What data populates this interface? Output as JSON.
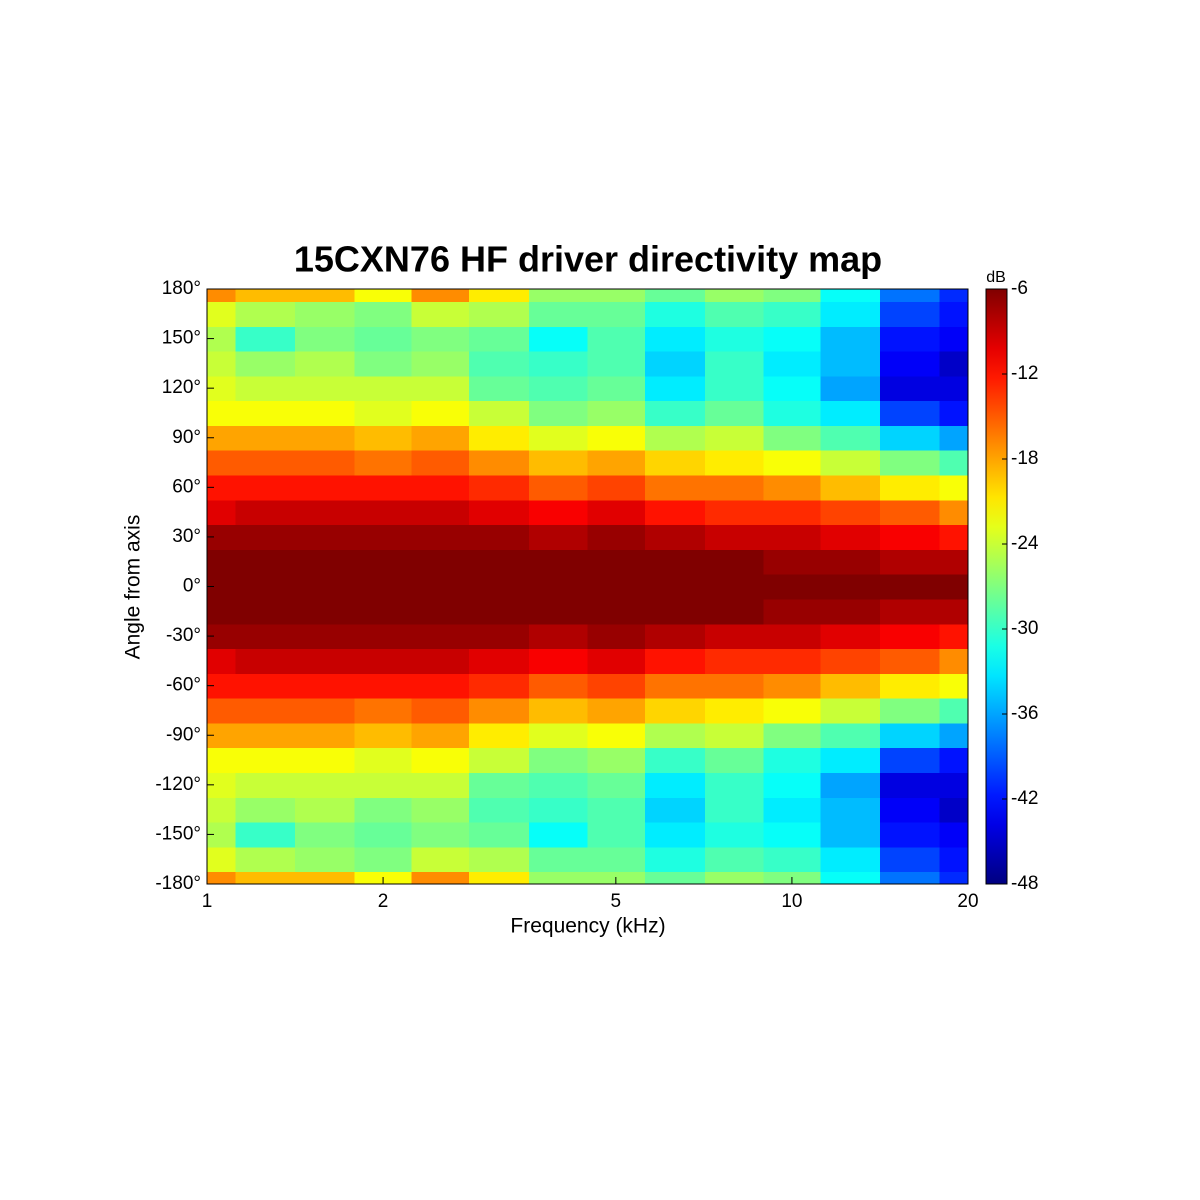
{
  "chart_data": {
    "type": "contourf",
    "title": "15CXN76 HF driver directivity map",
    "x_label": "Frequency (kHz)",
    "y_label": "Angle from axis",
    "colorbar_label": "dB",
    "x_scale": "log",
    "colormap": "jet",
    "x": [
      1,
      1.25,
      1.6,
      2,
      2.5,
      3.15,
      4,
      5,
      6.3,
      8,
      10,
      12.5,
      16,
      20
    ],
    "y": [
      -180,
      -165,
      -150,
      -135,
      -120,
      -105,
      -90,
      -75,
      -60,
      -45,
      -30,
      -15,
      0,
      15,
      30,
      45,
      60,
      75,
      90,
      105,
      120,
      135,
      150,
      165,
      180
    ],
    "z": [
      [
        -17,
        -19,
        -19,
        -22,
        -17,
        -21,
        -26,
        -26,
        -28,
        -26,
        -27,
        -32,
        -38,
        -41
      ],
      [
        -23,
        -25,
        -26,
        -27,
        -24,
        -25,
        -28,
        -28,
        -31,
        -29,
        -30,
        -33,
        -40,
        -42
      ],
      [
        -25,
        -30,
        -27,
        -28,
        -27,
        -28,
        -32,
        -29,
        -33,
        -31,
        -32,
        -35,
        -42,
        -43
      ],
      [
        -24,
        -26,
        -25,
        -27,
        -26,
        -29,
        -30,
        -29,
        -34,
        -30,
        -33,
        -35,
        -43,
        -45
      ],
      [
        -23,
        -24,
        -24,
        -24,
        -24,
        -28,
        -29,
        -28,
        -33,
        -30,
        -32,
        -36,
        -44,
        -44
      ],
      [
        -22,
        -22,
        -22,
        -23,
        -22,
        -24,
        -27,
        -26,
        -30,
        -28,
        -31,
        -33,
        -40,
        -42
      ],
      [
        -18,
        -18,
        -18,
        -19,
        -18,
        -21,
        -23,
        -22,
        -25,
        -24,
        -27,
        -29,
        -34,
        -36
      ],
      [
        -15,
        -15,
        -15,
        -16,
        -15,
        -17,
        -19,
        -18,
        -20,
        -21,
        -22,
        -24,
        -27,
        -29
      ],
      [
        -12,
        -12,
        -12,
        -12,
        -12,
        -13,
        -15,
        -14,
        -16,
        -16,
        -17,
        -19,
        -21,
        -22
      ],
      [
        -10,
        -9,
        -9,
        -9,
        -9,
        -10,
        -11,
        -10,
        -12,
        -13,
        -13,
        -14,
        -15,
        -17
      ],
      [
        -7,
        -7,
        -7,
        -7,
        -7,
        -7,
        -8,
        -7,
        -8,
        -9,
        -9,
        -10,
        -11,
        -12
      ],
      [
        -6,
        -6,
        -6,
        -6,
        -6,
        -6,
        -6,
        -6,
        -6,
        -6,
        -7,
        -7,
        -8,
        -8
      ],
      [
        -6,
        -6,
        -6,
        -6,
        -6,
        -6,
        -6,
        -6,
        -6,
        -6,
        -6,
        -6,
        -6,
        -6
      ],
      [
        -6,
        -6,
        -6,
        -6,
        -6,
        -6,
        -6,
        -6,
        -6,
        -6,
        -7,
        -7,
        -8,
        -8
      ],
      [
        -7,
        -7,
        -7,
        -7,
        -7,
        -7,
        -8,
        -7,
        -8,
        -9,
        -9,
        -10,
        -11,
        -12
      ],
      [
        -10,
        -9,
        -9,
        -9,
        -9,
        -10,
        -11,
        -10,
        -12,
        -13,
        -13,
        -14,
        -15,
        -17
      ],
      [
        -12,
        -12,
        -12,
        -12,
        -12,
        -13,
        -15,
        -14,
        -16,
        -16,
        -17,
        -19,
        -21,
        -22
      ],
      [
        -15,
        -15,
        -15,
        -16,
        -15,
        -17,
        -19,
        -18,
        -20,
        -21,
        -22,
        -24,
        -27,
        -29
      ],
      [
        -18,
        -18,
        -18,
        -19,
        -18,
        -21,
        -23,
        -22,
        -25,
        -24,
        -27,
        -29,
        -34,
        -36
      ],
      [
        -22,
        -22,
        -22,
        -23,
        -22,
        -24,
        -27,
        -26,
        -30,
        -28,
        -31,
        -33,
        -40,
        -42
      ],
      [
        -23,
        -24,
        -24,
        -24,
        -24,
        -28,
        -29,
        -28,
        -33,
        -30,
        -32,
        -36,
        -44,
        -44
      ],
      [
        -24,
        -26,
        -25,
        -27,
        -26,
        -29,
        -30,
        -29,
        -34,
        -30,
        -33,
        -35,
        -43,
        -45
      ],
      [
        -25,
        -30,
        -27,
        -28,
        -27,
        -28,
        -32,
        -29,
        -33,
        -31,
        -32,
        -35,
        -42,
        -43
      ],
      [
        -23,
        -25,
        -26,
        -27,
        -24,
        -25,
        -28,
        -28,
        -31,
        -29,
        -30,
        -33,
        -40,
        -42
      ],
      [
        -17,
        -19,
        -19,
        -22,
        -17,
        -21,
        -26,
        -26,
        -28,
        -26,
        -27,
        -32,
        -38,
        -41
      ]
    ],
    "xlim": [
      1,
      20
    ],
    "xticks": [
      1,
      2,
      5,
      10,
      20
    ],
    "ylim": [
      -180,
      180
    ],
    "yticks": [
      {
        "value": -180,
        "label": "-180°"
      },
      {
        "value": -150,
        "label": "-150°"
      },
      {
        "value": -120,
        "label": "-120°"
      },
      {
        "value": -90,
        "label": "-90°"
      },
      {
        "value": -60,
        "label": "-60°"
      },
      {
        "value": -30,
        "label": "-30°"
      },
      {
        "value": 0,
        "label": "0°"
      },
      {
        "value": 30,
        "label": "30°"
      },
      {
        "value": 60,
        "label": "60°"
      },
      {
        "value": 90,
        "label": "90°"
      },
      {
        "value": 120,
        "label": "120°"
      },
      {
        "value": 150,
        "label": "150°"
      },
      {
        "value": 180,
        "label": "180°"
      }
    ],
    "clim": [
      -48,
      -6
    ],
    "cticks": [
      -48,
      -42,
      -36,
      -30,
      -24,
      -18,
      -12,
      -6
    ]
  }
}
